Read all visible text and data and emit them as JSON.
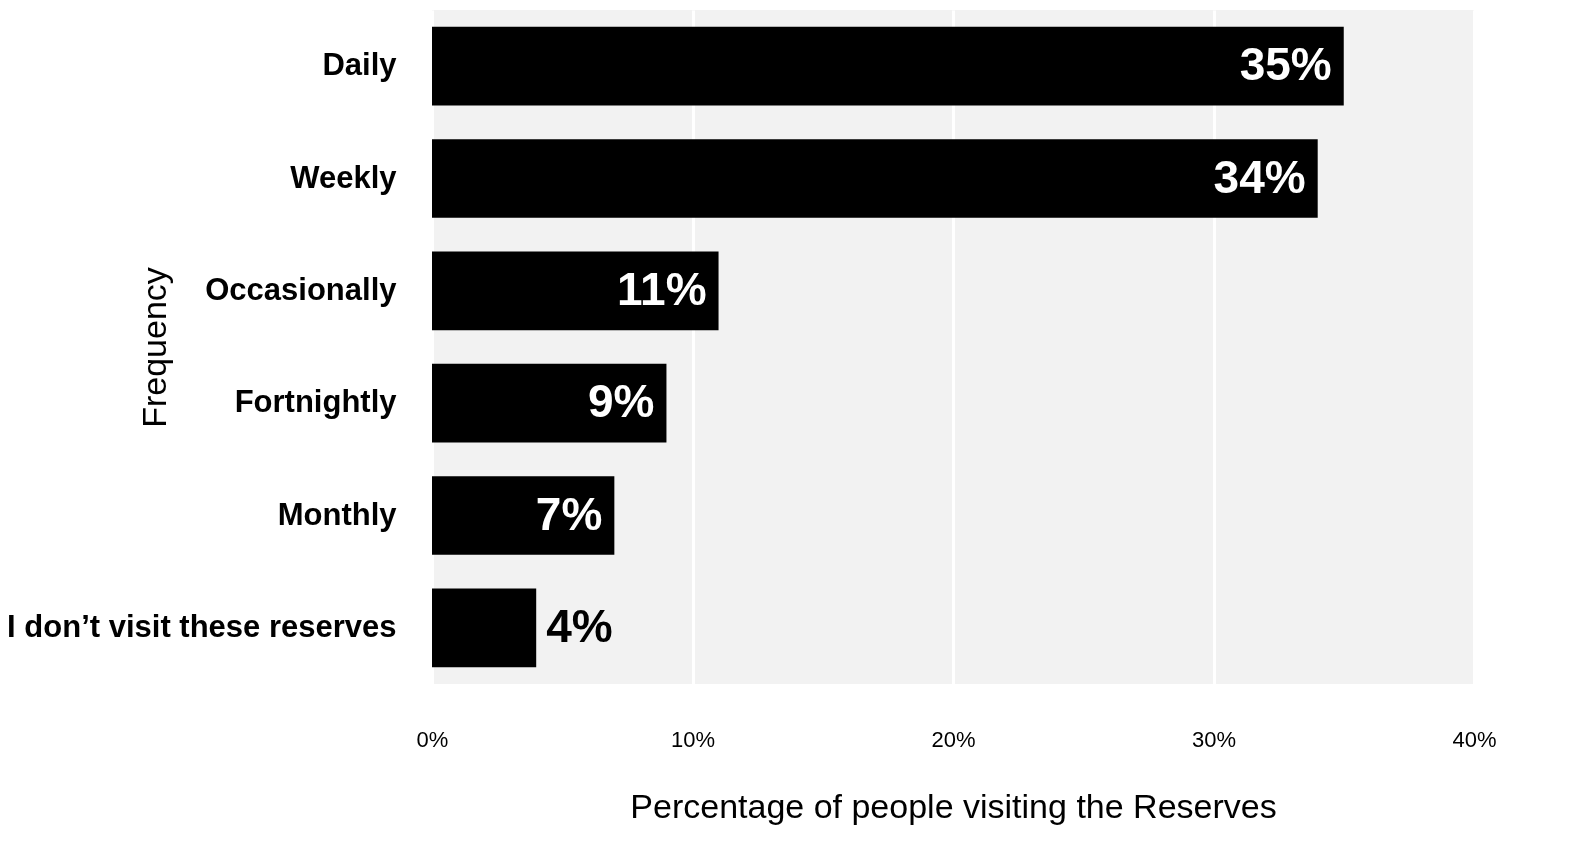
{
  "chart_data": {
    "type": "bar",
    "orientation": "horizontal",
    "xlabel": "Percentage of people visiting the Reserves",
    "ylabel": "Frequency",
    "categories": [
      "Daily",
      "Weekly",
      "Occasionally",
      "Fortnightly",
      "Monthly",
      "I don’t visit these reserves"
    ],
    "values": [
      35,
      34,
      11,
      9,
      7,
      4
    ],
    "value_labels": [
      "35%",
      "34%",
      "11%",
      "9%",
      "7%",
      "4%"
    ],
    "color": "#000000",
    "xlim": [
      0,
      40
    ],
    "xticks": [
      {
        "value": 0,
        "label": "0%"
      },
      {
        "value": 10,
        "label": "10%"
      },
      {
        "value": 20,
        "label": "20%"
      },
      {
        "value": 30,
        "label": "30%"
      },
      {
        "value": 40,
        "label": "40%"
      }
    ],
    "grid": "x"
  }
}
